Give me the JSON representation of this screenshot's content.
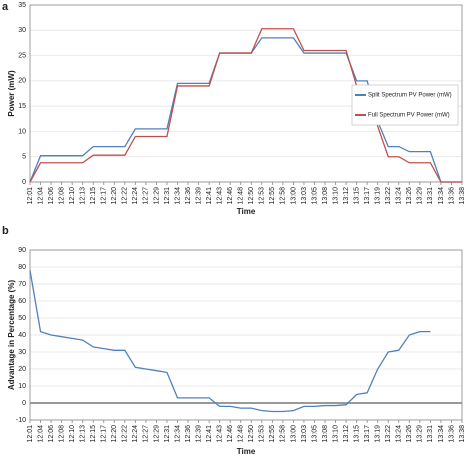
{
  "chart_data": [
    {
      "type": "line",
      "panel": "a",
      "ylabel": "Power (mW)",
      "xlabel": "Time",
      "categories": [
        "12:01",
        "12:04",
        "12:06",
        "12:08",
        "12:10",
        "12:13",
        "12:15",
        "12:17",
        "12:20",
        "12:22",
        "12:24",
        "12:27",
        "12:29",
        "12:31",
        "12:34",
        "12:36",
        "12:39",
        "12:41",
        "12:43",
        "12:46",
        "12:48",
        "12:50",
        "12:53",
        "12:55",
        "12:58",
        "13:00",
        "13:03",
        "13:05",
        "13:08",
        "13:10",
        "13:12",
        "13:15",
        "13:17",
        "13:19",
        "13:22",
        "13:24",
        "13:26",
        "13:29",
        "13:31",
        "13:34",
        "13:36",
        "13:38"
      ],
      "series": [
        {
          "name": "Split Spectrum PV Power (mW)",
          "color": "#4f81bd",
          "values": [
            0,
            5.2,
            5.2,
            5.2,
            5.2,
            5.2,
            7,
            7,
            7,
            7,
            10.5,
            10.5,
            10.5,
            10.5,
            19.5,
            19.5,
            19.5,
            19.5,
            25.5,
            25.5,
            25.5,
            25.5,
            28.5,
            28.5,
            28.5,
            28.5,
            25.5,
            25.5,
            25.5,
            25.5,
            25.5,
            20,
            20,
            12,
            7,
            7,
            6,
            6,
            6,
            0,
            0,
            0
          ]
        },
        {
          "name": "Full Spectrum PV Power (mW)",
          "color": "#c0504d",
          "values": [
            0,
            3.8,
            3.8,
            3.8,
            3.8,
            3.8,
            5.3,
            5.3,
            5.3,
            5.3,
            9,
            9,
            9,
            9,
            19,
            19,
            19,
            19,
            25.5,
            25.5,
            25.5,
            25.5,
            30.3,
            30.3,
            30.3,
            30.3,
            26,
            26,
            26,
            26,
            26,
            19,
            19,
            11,
            5,
            5,
            3.8,
            3.8,
            3.8,
            0,
            0,
            0
          ]
        }
      ],
      "ylim": [
        0,
        35
      ],
      "yticks": [
        0,
        5,
        10,
        15,
        20,
        25,
        30,
        35
      ],
      "grid": true,
      "legend": "right"
    },
    {
      "type": "line",
      "panel": "b",
      "ylabel": "Advantage in Percentage (%)",
      "xlabel": "Time",
      "categories": [
        "12:01",
        "12:04",
        "12:06",
        "12:08",
        "12:10",
        "12:13",
        "12:15",
        "12:17",
        "12:20",
        "12:22",
        "12:24",
        "12:27",
        "12:29",
        "12:31",
        "12:34",
        "12:36",
        "12:39",
        "12:41",
        "12:43",
        "12:46",
        "12:48",
        "12:50",
        "12:53",
        "12:55",
        "12:58",
        "13:00",
        "13:03",
        "13:05",
        "13:08",
        "13:10",
        "13:12",
        "13:15",
        "13:17",
        "13:19",
        "13:22",
        "13:24",
        "13:26",
        "13:29",
        "13:31",
        "13:34",
        "13:36",
        "13:38"
      ],
      "series": [
        {
          "color": "#4f81bd",
          "values": [
            78,
            42,
            40,
            39,
            38,
            37,
            33,
            32,
            31,
            31,
            21,
            20,
            19,
            18,
            3,
            3,
            3,
            3,
            -2,
            -2,
            -3,
            -3,
            -4.5,
            -5,
            -5,
            -4.5,
            -2,
            -2,
            -1.5,
            -1.5,
            -1,
            5,
            6,
            20,
            30,
            31,
            40,
            42,
            42,
            null,
            null,
            null
          ]
        }
      ],
      "ylim": [
        -10,
        90
      ],
      "yticks": [
        -10,
        0,
        10,
        20,
        30,
        40,
        50,
        60,
        70,
        80,
        90
      ],
      "grid": true,
      "zero_line": true
    }
  ]
}
